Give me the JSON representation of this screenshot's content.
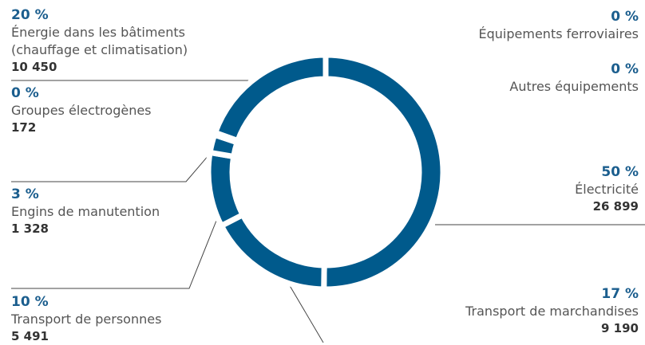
{
  "chart_data": {
    "type": "donut",
    "categories": [
      "Électricité",
      "Transport de marchandises",
      "Transport de personnes",
      "Engins de manutention",
      "Groupes électrogènes",
      "Énergie dans les bâtiments (chauffage et climatisation)",
      "Équipements ferroviaires",
      "Autres équipements"
    ],
    "values": [
      26899,
      9190,
      5491,
      1328,
      172,
      10450,
      null,
      null
    ],
    "value_labels": [
      "26 899",
      "9 190",
      "5 491",
      "1 328",
      "172",
      "10 450",
      null,
      null
    ],
    "percents": [
      50,
      17,
      10,
      3,
      0,
      20,
      0,
      0
    ],
    "percent_labels": [
      "50 %",
      "17 %",
      "10 %",
      "3 %",
      "0 %",
      "20 %",
      "0 %",
      "0 %"
    ],
    "color": "#005a8c"
  }
}
